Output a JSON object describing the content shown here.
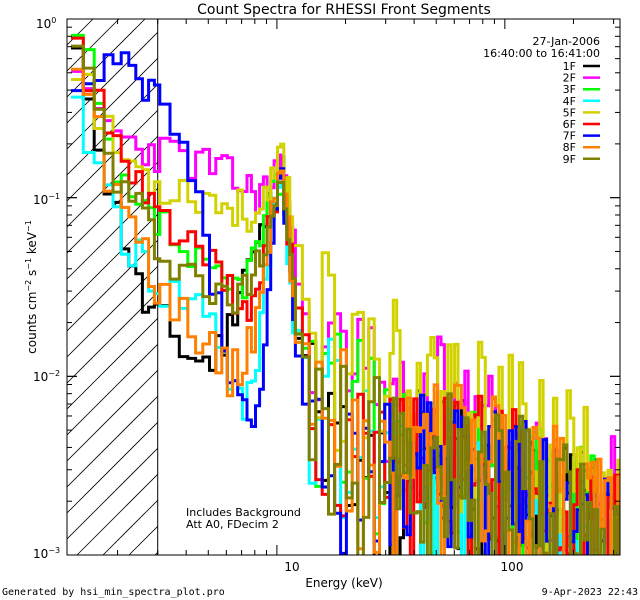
{
  "chart_data": {
    "type": "line",
    "title": "Count Spectra for RHESSI Front Segments",
    "xlabel": "Energy (keV)",
    "ylabel": "counts cm^-2 s^-1 keV^-1",
    "xscale": "log",
    "yscale": "log",
    "xlim": [
      1.2,
      320
    ],
    "ylim": [
      0.001,
      1.0
    ],
    "x_tick_labels": [
      "10",
      "100"
    ],
    "y_tick_labels": [
      "10^0",
      "10^-1",
      "10^-2",
      "10^-3"
    ],
    "date": "27-Jan-2006",
    "time_range": "16:40:00 to 16:41:00",
    "annotations": [
      "Includes Background",
      "Att A0, FDecim 2"
    ],
    "excluded_region_max_kev": 3.0,
    "series": [
      {
        "name": "1F",
        "color": "#000000",
        "scale": 0.8,
        "seed": 11,
        "x": [
          1.3,
          1.5,
          1.8,
          2.2,
          2.5,
          3.0,
          4.0,
          5.0,
          6.0,
          7.0,
          8.0,
          9.0,
          10.3,
          11.0,
          12.0,
          15,
          20,
          30,
          50,
          80,
          120,
          200,
          300
        ],
        "y": [
          0.55,
          0.32,
          0.1,
          0.05,
          0.026,
          0.02,
          0.013,
          0.012,
          0.018,
          0.04,
          0.05,
          0.085,
          0.15,
          0.08,
          0.018,
          0.0045,
          0.0035,
          0.003,
          0.003,
          0.0026,
          0.0022,
          0.0015,
          0.0011
        ]
      },
      {
        "name": "2F",
        "color": "#ff00ff",
        "scale": 0.94,
        "seed": 23,
        "x": [
          1.3,
          1.5,
          1.8,
          2.2,
          2.5,
          3.0,
          4.0,
          5.0,
          6.0,
          7.0,
          8.0,
          9.0,
          10.3,
          11.0,
          12.0,
          15,
          20,
          30,
          50,
          80,
          120,
          200,
          300
        ],
        "y": [
          0.4,
          0.3,
          0.25,
          0.2,
          0.19,
          0.18,
          0.16,
          0.15,
          0.13,
          0.115,
          0.105,
          0.11,
          0.17,
          0.1,
          0.04,
          0.016,
          0.01,
          0.008,
          0.006,
          0.0045,
          0.0034,
          0.0024,
          0.0018
        ]
      },
      {
        "name": "3F",
        "color": "#00ff00",
        "scale": 0.78,
        "seed": 37,
        "x": [
          1.3,
          1.5,
          1.8,
          2.2,
          2.5,
          3.0,
          4.0,
          5.0,
          6.0,
          7.0,
          8.0,
          9.0,
          10.3,
          11.0,
          12.0,
          15,
          20,
          30,
          50,
          80,
          120,
          200,
          300
        ],
        "y": [
          0.75,
          0.4,
          0.15,
          0.09,
          0.08,
          0.07,
          0.045,
          0.035,
          0.03,
          0.035,
          0.05,
          0.08,
          0.14,
          0.08,
          0.02,
          0.008,
          0.006,
          0.005,
          0.004,
          0.0032,
          0.0026,
          0.0018,
          0.0013
        ]
      },
      {
        "name": "4F",
        "color": "#00ffff",
        "scale": 0.82,
        "seed": 41,
        "x": [
          1.3,
          1.5,
          1.8,
          2.2,
          2.5,
          3.0,
          4.0,
          5.0,
          6.0,
          7.0,
          8.0,
          9.0,
          10.3,
          11.0,
          12.0,
          15,
          20,
          30,
          50,
          80,
          120,
          200,
          300
        ],
        "y": [
          0.28,
          0.18,
          0.1,
          0.05,
          0.045,
          0.03,
          0.026,
          0.024,
          0.01,
          0.006,
          0.012,
          0.05,
          0.13,
          0.06,
          0.015,
          0.005,
          0.004,
          0.0035,
          0.003,
          0.0025,
          0.002,
          0.0014,
          0.001
        ]
      },
      {
        "name": "5F",
        "color": "#d2d200",
        "scale": 0.9,
        "seed": 53,
        "x": [
          1.3,
          1.5,
          1.8,
          2.2,
          2.5,
          3.0,
          4.0,
          5.0,
          6.0,
          7.0,
          8.0,
          9.0,
          10.3,
          11.0,
          12.0,
          15,
          20,
          30,
          50,
          80,
          120,
          200,
          300
        ],
        "y": [
          0.6,
          0.35,
          0.2,
          0.16,
          0.14,
          0.12,
          0.11,
          0.1,
          0.09,
          0.085,
          0.08,
          0.09,
          0.18,
          0.12,
          0.05,
          0.015,
          0.012,
          0.01,
          0.008,
          0.006,
          0.0045,
          0.0033,
          0.0024
        ]
      },
      {
        "name": "6F",
        "color": "#ff0000",
        "scale": 0.8,
        "seed": 61,
        "x": [
          1.3,
          1.5,
          1.8,
          2.2,
          2.5,
          3.0,
          4.0,
          5.0,
          6.0,
          7.0,
          8.0,
          9.0,
          10.3,
          11.0,
          12.0,
          15,
          20,
          30,
          50,
          80,
          120,
          200,
          300
        ],
        "y": [
          0.7,
          0.4,
          0.2,
          0.13,
          0.1,
          0.08,
          0.06,
          0.04,
          0.03,
          0.02,
          0.03,
          0.06,
          0.14,
          0.07,
          0.02,
          0.006,
          0.005,
          0.004,
          0.0035,
          0.0028,
          0.0022,
          0.0016,
          0.0012
        ]
      },
      {
        "name": "7F",
        "color": "#0000ff",
        "scale": 0.75,
        "seed": 73,
        "x": [
          1.3,
          1.5,
          1.8,
          2.2,
          2.5,
          3.0,
          4.0,
          5.0,
          6.0,
          7.0,
          8.0,
          9.0,
          10.3,
          11.0,
          12.0,
          15,
          20,
          30,
          50,
          80,
          120,
          200,
          300
        ],
        "y": [
          0.35,
          0.45,
          0.52,
          0.48,
          0.42,
          0.35,
          0.15,
          0.04,
          0.012,
          0.006,
          0.005,
          0.03,
          0.13,
          0.06,
          0.012,
          0.004,
          0.0035,
          0.003,
          0.0028,
          0.0024,
          0.002,
          0.0014,
          0.001
        ]
      },
      {
        "name": "8F",
        "color": "#ff8000",
        "scale": 0.8,
        "seed": 89,
        "x": [
          1.3,
          1.5,
          1.8,
          2.2,
          2.5,
          3.0,
          4.0,
          5.0,
          6.0,
          7.0,
          8.0,
          9.0,
          10.3,
          11.0,
          12.0,
          15,
          20,
          30,
          50,
          80,
          120,
          200,
          300
        ],
        "y": [
          0.65,
          0.3,
          0.12,
          0.08,
          0.05,
          0.03,
          0.02,
          0.015,
          0.01,
          0.012,
          0.02,
          0.06,
          0.15,
          0.07,
          0.02,
          0.005,
          0.0045,
          0.004,
          0.0035,
          0.003,
          0.0024,
          0.0017,
          0.0012
        ]
      },
      {
        "name": "9F",
        "color": "#808000",
        "scale": 0.8,
        "seed": 97,
        "x": [
          1.3,
          1.5,
          1.8,
          2.2,
          2.5,
          3.0,
          4.0,
          5.0,
          6.0,
          7.0,
          8.0,
          9.0,
          10.3,
          11.0,
          12.0,
          15,
          20,
          30,
          50,
          80,
          120,
          200,
          300
        ],
        "y": [
          0.6,
          0.4,
          0.14,
          0.1,
          0.08,
          0.05,
          0.04,
          0.03,
          0.025,
          0.03,
          0.045,
          0.07,
          0.14,
          0.07,
          0.02,
          0.004,
          0.004,
          0.0035,
          0.0032,
          0.0028,
          0.0022,
          0.0016,
          0.0012
        ]
      }
    ]
  },
  "footer": {
    "left": "Generated by hsi_min_spectra_plot.pro",
    "right": "9-Apr-2023 22:43"
  }
}
